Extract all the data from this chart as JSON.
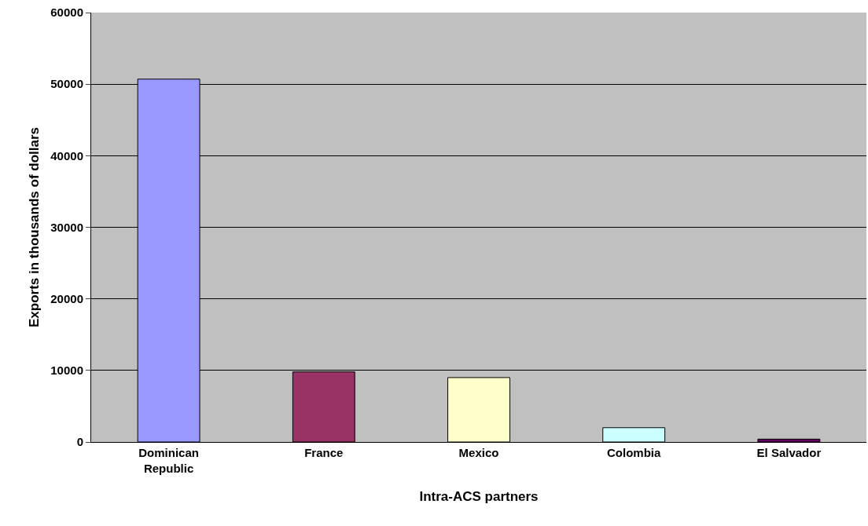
{
  "chart_data": {
    "type": "bar",
    "xlabel": "Intra-ACS partners",
    "ylabel": "Exports in thousands of dollars",
    "categories": [
      "Dominican Republic",
      "France",
      "Mexico",
      "Colombia",
      "El Salvador"
    ],
    "values": [
      50700,
      9800,
      9000,
      2000,
      400
    ],
    "colors": [
      "#9999ff",
      "#993366",
      "#ffffcc",
      "#ccffff",
      "#660066"
    ],
    "ylim": [
      0,
      60000
    ],
    "yticks": [
      0,
      10000,
      20000,
      30000,
      40000,
      50000,
      60000
    ],
    "grid": "y"
  }
}
